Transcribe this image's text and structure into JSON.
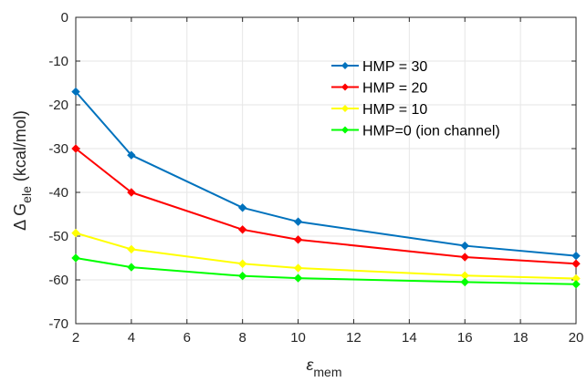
{
  "chart_data": {
    "type": "line",
    "x": [
      2,
      4,
      8,
      10,
      16,
      20
    ],
    "xlim": [
      2,
      20
    ],
    "ylim": [
      -70,
      0
    ],
    "xticks": [
      2,
      4,
      6,
      8,
      10,
      12,
      14,
      16,
      18,
      20
    ],
    "yticks": [
      0,
      -10,
      -20,
      -30,
      -40,
      -50,
      -60,
      -70
    ],
    "grid": true,
    "legend_position": "top-right",
    "xlabel": {
      "symbol": "ε",
      "subscript": "mem"
    },
    "ylabel": {
      "prefix": "Δ G",
      "subscript": "ele",
      "suffix": " (kcal/mol)"
    },
    "series": [
      {
        "name": "HMP = 30",
        "color": "#0072BD",
        "values": [
          -17.0,
          -31.5,
          -43.5,
          -46.7,
          -52.2,
          -54.5
        ]
      },
      {
        "name": "HMP = 20",
        "color": "#FF0000",
        "values": [
          -30.0,
          -40.0,
          -48.5,
          -50.8,
          -54.8,
          -56.3
        ]
      },
      {
        "name": "HMP = 10",
        "color": "#FFFF00",
        "values": [
          -49.3,
          -53.0,
          -56.3,
          -57.3,
          -59.0,
          -59.7
        ]
      },
      {
        "name": "HMP=0 (ion channel)",
        "color": "#00FF00",
        "values": [
          -55.0,
          -57.1,
          -59.1,
          -59.6,
          -60.5,
          -61.0
        ]
      }
    ]
  }
}
